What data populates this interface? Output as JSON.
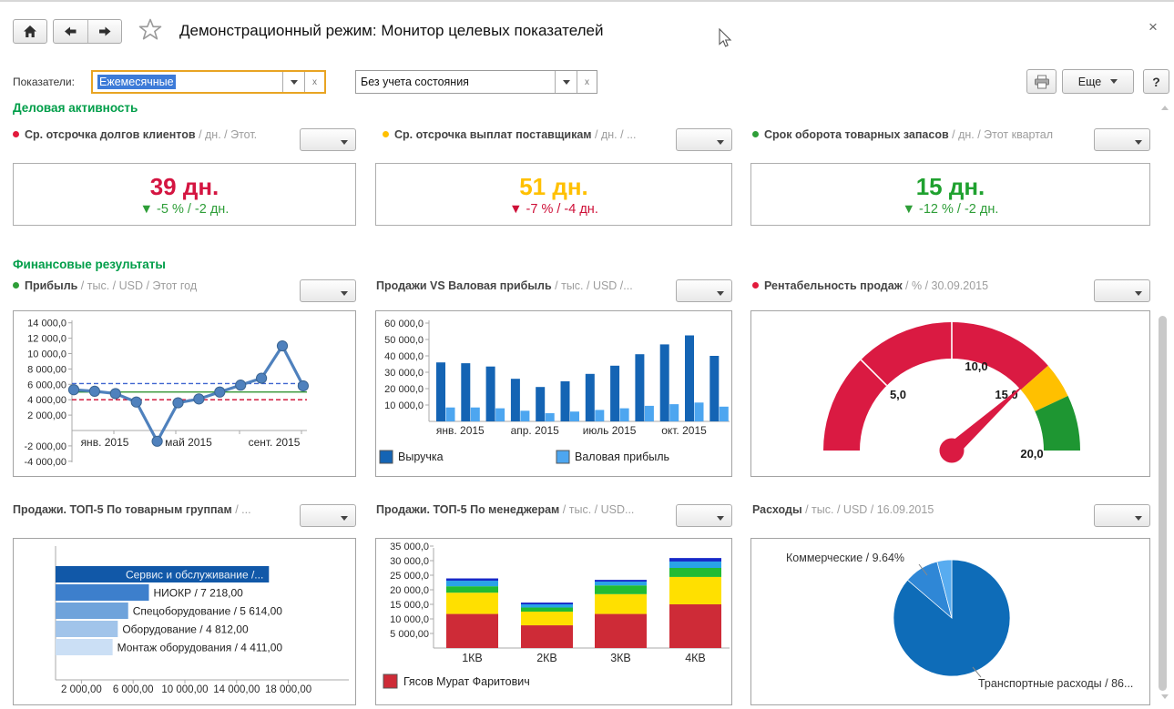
{
  "window": {
    "title": "Демонстрационный режим: Монитор целевых показателей",
    "close_label": "×"
  },
  "filter_bar": {
    "label": "Показатели:",
    "indicator_filter": {
      "value": "Ежемесячные"
    },
    "state_filter": {
      "value": "Без учета состояния"
    },
    "more_button": "Еще",
    "help_button": "?"
  },
  "sections": {
    "business": "Деловая активность",
    "finance": "Финансовые результаты"
  },
  "kpis": [
    {
      "bullet_color": "#e21a3c",
      "name": "Ср. отсрочка долгов клиентов",
      "suffix": " / дн. / Этот.",
      "value": "39 дн.",
      "value_color": "#d41541",
      "trend_arrow": "▼",
      "delta": " -5 % / -2 дн.",
      "delta_color": "#2e9e38"
    },
    {
      "bullet_color": "#ffc000",
      "name": "Ср. отсрочка выплат поставщикам",
      "suffix": " / дн. / ...",
      "value": "51 дн.",
      "value_color": "#ffc000",
      "trend_arrow": "▼",
      "delta": " -7 % / -4 дн.",
      "delta_color": "#ce1038"
    },
    {
      "bullet_color": "#2e9e38",
      "name": "Срок оборота товарных запасов",
      "suffix": " / дн. / Этот квартал",
      "value": "15 дн.",
      "value_color": "#1fa12f",
      "trend_arrow": "▼",
      "delta": " -12 % / -2 дн.",
      "delta_color": "#2e9e38"
    }
  ],
  "chart_data": [
    {
      "type": "line",
      "title": "Прибыль",
      "title_suffix": " / тыс. / USD / Этот год",
      "bullet_color": "#2e9e38",
      "ylim": [
        -4000,
        14000
      ],
      "line_color": "#4f81bd",
      "y_ticks": [
        {
          "v": 14000,
          "label": "14 000,0"
        },
        {
          "v": 12000,
          "label": "12 000,0"
        },
        {
          "v": 10000,
          "label": "10 000,0"
        },
        {
          "v": 8000,
          "label": "8 000,00"
        },
        {
          "v": 6000,
          "label": "6 000,00"
        },
        {
          "v": 4000,
          "label": "4 000,00"
        },
        {
          "v": 2000,
          "label": "2 000,00"
        },
        {
          "v": -2000,
          "label": "-2 000,00"
        },
        {
          "v": -4000,
          "label": "-4 000,00"
        }
      ],
      "x_tick_labels": [
        "янв. 2015",
        "май 2015",
        "сент. 2015"
      ],
      "values": [
        5300,
        5100,
        4800,
        3700,
        -1400,
        3600,
        4100,
        5000,
        5900,
        6800,
        11000,
        5800
      ],
      "ref_lines": [
        {
          "value": 6100,
          "color": "#3e64d0",
          "dashed": true
        },
        {
          "value": 5000,
          "color": "#1e8a1e",
          "dashed": false
        },
        {
          "value": 4000,
          "color": "#cc0a2e",
          "dashed": true
        }
      ]
    },
    {
      "type": "bar",
      "title": "Продажи VS Валовая прибыль",
      "title_suffix": " / тыс. / USD /...",
      "ylim": [
        0,
        60000
      ],
      "y_ticks": [
        {
          "v": 60000,
          "label": "60 000,0"
        },
        {
          "v": 50000,
          "label": "50 000,0"
        },
        {
          "v": 40000,
          "label": "40 000,0"
        },
        {
          "v": 30000,
          "label": "30 000,0"
        },
        {
          "v": 20000,
          "label": "20 000,0"
        },
        {
          "v": 10000,
          "label": "10 000,0"
        }
      ],
      "x_tick_labels": [
        "янв. 2015",
        "апр. 2015",
        "июль 2015",
        "окт. 2015"
      ],
      "series": [
        {
          "name": "Выручка",
          "color": "#1464b4",
          "values": [
            36000,
            35500,
            33500,
            26000,
            21000,
            24500,
            29000,
            34000,
            41000,
            47000,
            52500,
            40000
          ]
        },
        {
          "name": "Валовая прибыль",
          "color": "#4da6f0",
          "values": [
            8500,
            8500,
            8000,
            6500,
            5000,
            6000,
            7000,
            8000,
            9500,
            10500,
            11500,
            9000
          ]
        }
      ]
    },
    {
      "type": "gauge",
      "title": "Рентабельность продаж",
      "title_suffix": " / % / 30.09.2015",
      "bullet_color": "#e21a3c",
      "min": 0,
      "max": 20,
      "value": 15.3,
      "zones": [
        {
          "from": 0,
          "to": 15.4,
          "color": "#da1a42"
        },
        {
          "from": 15.4,
          "to": 17.2,
          "color": "#ffc000"
        },
        {
          "from": 17.2,
          "to": 20,
          "color": "#1e9632"
        }
      ],
      "ticks": [
        {
          "v": 5,
          "label": "5,0"
        },
        {
          "v": 10,
          "label": "10,0"
        },
        {
          "v": 15,
          "label": "15,0"
        },
        {
          "v": 20,
          "label": "20,0"
        }
      ]
    },
    {
      "type": "hbar",
      "title": "Продажи. ТОП-5 По товарным группам",
      "title_suffix": " / ...",
      "xlim": [
        0,
        22000
      ],
      "bars": [
        {
          "label": "Сервис и обслуживание /...",
          "value": 16500,
          "color": "#1158a8",
          "label_inside": true
        },
        {
          "label": "НИОКР / 7 218,00",
          "value": 7218,
          "color": "#3d7fcc"
        },
        {
          "label": "Спецоборудование / 5 614,00",
          "value": 5614,
          "color": "#6fa3db"
        },
        {
          "label": "Оборудование / 4 812,00",
          "value": 4812,
          "color": "#a1c4ea"
        },
        {
          "label": "Монтаж оборудования / 4 411,00",
          "value": 4411,
          "color": "#cbdff5"
        }
      ],
      "x_ticks": [
        {
          "v": 2000,
          "label": "2 000,00"
        },
        {
          "v": 6000,
          "label": "6 000,00"
        },
        {
          "v": 10000,
          "label": "10 000,00"
        },
        {
          "v": 14000,
          "label": "14 000,00"
        },
        {
          "v": 18000,
          "label": "18 000,00"
        }
      ]
    },
    {
      "type": "stacked_bar",
      "title": "Продажи. ТОП-5 По менеджерам",
      "title_suffix": " / тыс. / USD...",
      "ylim": [
        0,
        35000
      ],
      "categories": [
        "1КВ",
        "2КВ",
        "3КВ",
        "4КВ"
      ],
      "y_ticks": [
        {
          "v": 35000,
          "label": "35 000,0"
        },
        {
          "v": 30000,
          "label": "30 000,0"
        },
        {
          "v": 25000,
          "label": "25 000,0"
        },
        {
          "v": 20000,
          "label": "20 000,0"
        },
        {
          "v": 15000,
          "label": "15 000,0"
        },
        {
          "v": 10000,
          "label": "10 000,0"
        },
        {
          "v": 5000,
          "label": "5 000,00"
        }
      ],
      "series": [
        {
          "name": "Гясов Мурат Фаритович",
          "color": "#ce2b37",
          "values": [
            11700,
            7800,
            11700,
            15000
          ]
        },
        {
          "name": "",
          "color": "#ffe000",
          "values": [
            7300,
            4700,
            6800,
            9400
          ]
        },
        {
          "name": "",
          "color": "#22bb33",
          "values": [
            2200,
            1400,
            3000,
            3100
          ]
        },
        {
          "name": "",
          "color": "#29a3e8",
          "values": [
            1900,
            1100,
            1300,
            2200
          ]
        },
        {
          "name": "",
          "color": "#1728c8",
          "values": [
            800,
            600,
            600,
            1200
          ]
        }
      ],
      "legend": [
        {
          "name": "Гясов Мурат Фаритович",
          "color": "#ce2b37"
        }
      ]
    },
    {
      "type": "pie",
      "title": "Расходы",
      "title_suffix": " / тыс. / USD / 16.09.2015",
      "slices": [
        {
          "label": "Транспортные расходы / 86...",
          "pct": 86.3,
          "color": "#0e6cb8"
        },
        {
          "label": "Коммерческие / 9.64%",
          "pct": 9.64,
          "color": "#2f87d6"
        },
        {
          "label": "",
          "pct": 4.06,
          "color": "#58acf0"
        }
      ]
    }
  ]
}
